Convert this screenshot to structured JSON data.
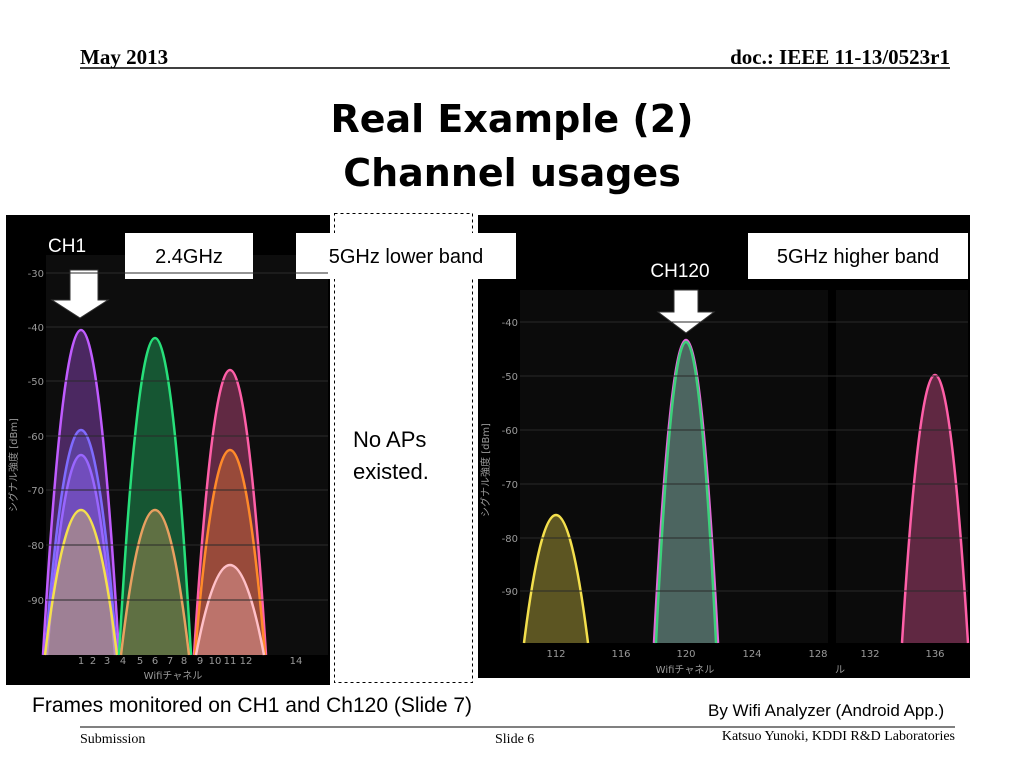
{
  "header": {
    "date": "May 2013",
    "doc": "doc.: IEEE 11-13/0523r1"
  },
  "title": [
    "Real Example (2)",
    "Channel usages"
  ],
  "labels": {
    "ch1": "CH1",
    "band24": "2.4GHz",
    "band5low": "5GHz lower band",
    "ch120": "CH120",
    "band5high": "5GHz higher band",
    "no_aps": [
      "No APs",
      "existed."
    ]
  },
  "screens": [
    {
      "y_axis_label": "シグナル強度 [dBm]",
      "y_ticks": [
        "-30",
        "-40",
        "-50",
        "-60",
        "-70",
        "-80",
        "-90"
      ],
      "x_axis_label": "Wifiチャネル",
      "x_ticks": [
        "1",
        "2",
        "3",
        "4",
        "5",
        "6",
        "7",
        "8",
        "9",
        "10",
        "11",
        "12",
        "14"
      ]
    },
    {
      "y_axis_label": "シグナル強度 [dBm]",
      "y_ticks": [
        "-40",
        "-50",
        "-60",
        "-70",
        "-80",
        "-90"
      ],
      "x_axis_label": "Wifiチャネル",
      "x_axis_label_2": "ル",
      "x_ticks": [
        "112",
        "116",
        "120",
        "124",
        "128",
        "132",
        "136"
      ]
    }
  ],
  "caption": "Frames monitored on CH1 and Ch120 (Slide 7)",
  "credit": "By Wifi Analyzer (Android App.)",
  "footer": {
    "left": "Submission",
    "center": "Slide 6",
    "right": "Katsuo Yunoki, KDDI R&D Laboratories"
  }
}
